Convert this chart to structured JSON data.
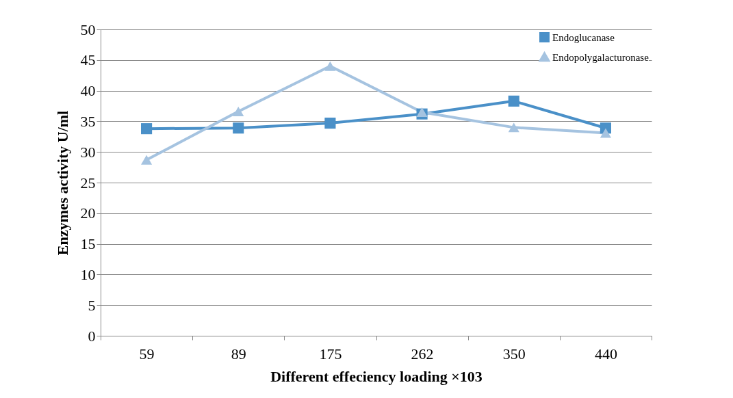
{
  "chart_data": {
    "type": "line",
    "xlabel": "Different effeciency loading ×103",
    "ylabel": "Enzymes activity U/ml",
    "categories": [
      "59",
      "89",
      "175",
      "262",
      "350",
      "440"
    ],
    "series": [
      {
        "name": "Endoglucanase",
        "color": "#4a90c8",
        "marker": "square",
        "values": [
          33.8,
          33.9,
          34.7,
          36.2,
          38.3,
          33.9
        ]
      },
      {
        "name": "Endopolygalacturonase",
        "color": "#a5c3e0",
        "marker": "triangle",
        "values": [
          28.7,
          36.6,
          44.0,
          36.5,
          34.0,
          33.1
        ]
      }
    ],
    "ylim": [
      0,
      50
    ],
    "yticks": [
      0,
      5,
      10,
      15,
      20,
      25,
      30,
      35,
      40,
      45,
      50
    ],
    "grid": "y",
    "legend": "top right",
    "line_style": "solid"
  }
}
